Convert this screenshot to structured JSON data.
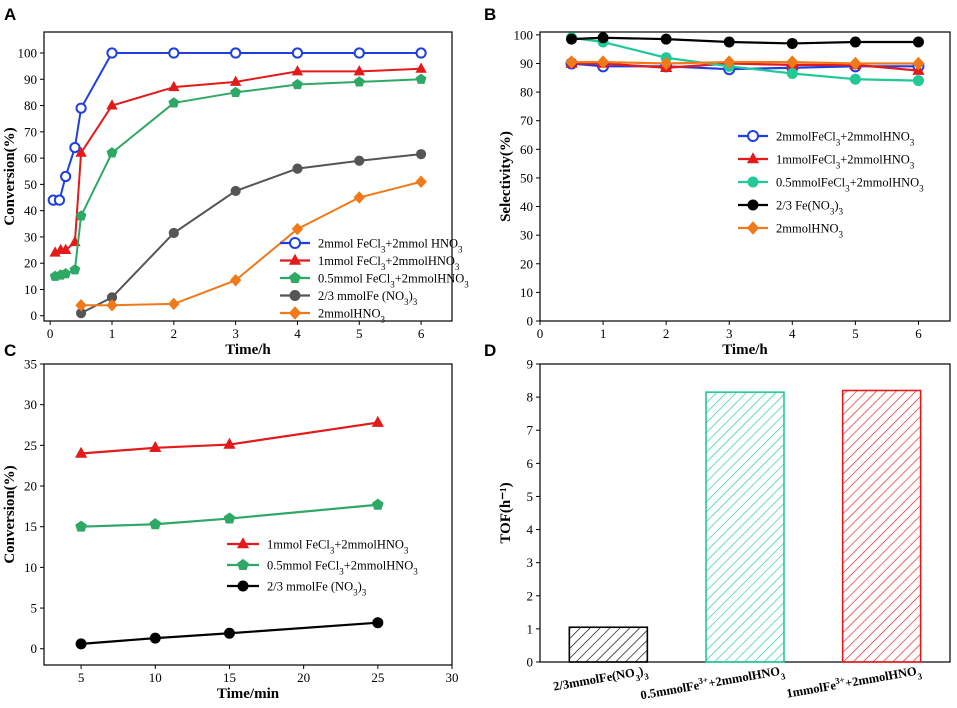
{
  "chart_data": [
    {
      "panel": "A",
      "type": "line",
      "xlabel": "Time/h",
      "ylabel": "Conversion(%)",
      "xlim": [
        -0.1,
        6.5
      ],
      "ylim": [
        -2,
        108
      ],
      "xticks": [
        "0",
        "1",
        "2",
        "3",
        "4",
        "5",
        "6"
      ],
      "yticks": [
        "0",
        "10",
        "20",
        "30",
        "40",
        "50",
        "60",
        "70",
        "80",
        "90",
        "100"
      ],
      "legend_position": "bottom-right",
      "series": [
        {
          "name": "2mmol FeCl3+2mmol HNO3",
          "legend_html": "2mmol FeCl<tspan baseline-shift='sub' font-size='9'>3</tspan>+2mmol HNO<tspan baseline-shift='sub' font-size='9'>3</tspan>",
          "color": "#1f3fe0",
          "marker": "circle",
          "x": [
            0.05,
            0.15,
            0.25,
            0.4,
            0.5,
            1,
            2,
            3,
            4,
            5,
            6
          ],
          "y": [
            44,
            44,
            53,
            64,
            79,
            100,
            100,
            100,
            100,
            100,
            100
          ]
        },
        {
          "name": "1mmol FeCl3+2mmolHNO3",
          "legend_html": "1mmol FeCl<tspan baseline-shift='sub' font-size='9'>3</tspan>+2mmolHNO<tspan baseline-shift='sub' font-size='9'>3</tspan>",
          "color": "#e41a1a",
          "marker": "triangle",
          "x": [
            0.08,
            0.17,
            0.25,
            0.4,
            0.5,
            1,
            2,
            3,
            4,
            5,
            6
          ],
          "y": [
            24,
            25,
            25,
            28,
            62,
            80,
            87,
            89,
            93,
            93,
            94
          ]
        },
        {
          "name": "0.5mmol FeCl3+2mmolHNO3",
          "legend_html": "0.5mmol FeCl<tspan baseline-shift='sub' font-size='9'>3</tspan>+2mmolHNO<tspan baseline-shift='sub' font-size='9'>3</tspan>",
          "color": "#2ea865",
          "marker": "pentagon",
          "x": [
            0.08,
            0.17,
            0.25,
            0.4,
            0.5,
            1,
            2,
            3,
            4,
            5,
            6
          ],
          "y": [
            15,
            15.5,
            16,
            17.5,
            38,
            62,
            81,
            85,
            88,
            89,
            90
          ]
        },
        {
          "name": "2/3 mmolFe (NO3)3",
          "legend_html": "2/3 mmolFe (NO<tspan baseline-shift='sub' font-size='9'>3</tspan>)<tspan baseline-shift='sub' font-size='9'>3</tspan>",
          "color": "#555555",
          "marker": "circle",
          "x": [
            0.5,
            1,
            2,
            3,
            4,
            5,
            6
          ],
          "y": [
            1,
            7,
            31.5,
            47.5,
            56,
            59,
            61.5
          ]
        },
        {
          "name": "2mmolHNO3",
          "legend_html": "2mmolHNO<tspan baseline-shift='sub' font-size='9'>3</tspan>",
          "color": "#f07a1a",
          "marker": "diamond",
          "x": [
            0.5,
            1,
            2,
            3,
            4,
            5,
            6
          ],
          "y": [
            4,
            4,
            4.5,
            13.5,
            33,
            45,
            51
          ]
        }
      ]
    },
    {
      "panel": "B",
      "type": "line",
      "xlabel": "Time/h",
      "ylabel": "Selectivity(%)",
      "xlim": [
        0,
        6.5
      ],
      "ylim": [
        0,
        101
      ],
      "xticks": [
        "0",
        "1",
        "2",
        "3",
        "4",
        "5",
        "6"
      ],
      "yticks": [
        "0",
        "10",
        "20",
        "30",
        "40",
        "50",
        "60",
        "70",
        "80",
        "90",
        "100"
      ],
      "legend_position": "center-right",
      "series": [
        {
          "name": "2mmolFeCl3+2mmolHNO3",
          "legend_html": "2mmolFeCl<tspan baseline-shift='sub' font-size='9'>3</tspan>+2mmolHNO<tspan baseline-shift='sub' font-size='9'>3</tspan>",
          "color": "#1f3fe0",
          "marker": "circle",
          "x": [
            0.5,
            1,
            2,
            3,
            4,
            5,
            6
          ],
          "y": [
            90,
            89,
            89,
            88,
            88.5,
            89,
            89
          ]
        },
        {
          "name": "1mmolFeCl3+2mmolHNO3",
          "legend_html": "1mmolFeCl<tspan baseline-shift='sub' font-size='9'>3</tspan>+2mmolHNO<tspan baseline-shift='sub' font-size='9'>3</tspan>",
          "color": "#e41a1a",
          "marker": "triangle",
          "x": [
            0.5,
            1,
            2,
            3,
            4,
            5,
            6
          ],
          "y": [
            90,
            90,
            88.5,
            90,
            89.5,
            89.5,
            87.5
          ]
        },
        {
          "name": "0.5mmolFeCl3+2mmolHNO3",
          "legend_html": "0.5mmolFeCl<tspan baseline-shift='sub' font-size='9'>3</tspan>+2mmolHNO<tspan baseline-shift='sub' font-size='9'>3</tspan>",
          "color": "#20c997",
          "marker": "circle",
          "x": [
            0.5,
            1,
            2,
            3,
            4,
            5,
            6
          ],
          "y": [
            99,
            97.5,
            92,
            89,
            86.5,
            84.5,
            84
          ]
        },
        {
          "name": "2/3 Fe(NO3)3",
          "legend_html": "2/3 Fe(NO<tspan baseline-shift='sub' font-size='9'>3</tspan>)<tspan baseline-shift='sub' font-size='9'>3</tspan>",
          "color": "#000000",
          "marker": "circle",
          "x": [
            0.5,
            1,
            2,
            3,
            4,
            5,
            6
          ],
          "y": [
            98.5,
            99,
            98.5,
            97.5,
            97,
            97.5,
            97.5
          ]
        },
        {
          "name": "2mmolHNO3",
          "legend_html": "2mmolHNO<tspan baseline-shift='sub' font-size='9'>3</tspan>",
          "color": "#f07a1a",
          "marker": "diamond",
          "x": [
            0.5,
            1,
            2,
            3,
            4,
            5,
            6
          ],
          "y": [
            90.5,
            90.5,
            90,
            90.5,
            90.5,
            90,
            90
          ]
        }
      ]
    },
    {
      "panel": "C",
      "type": "line",
      "xlabel": "Time/min",
      "ylabel": "Conversion(%)",
      "xlim": [
        2.5,
        30
      ],
      "ylim": [
        -2,
        35
      ],
      "xticks": [
        "5",
        "10",
        "15",
        "20",
        "25",
        "30"
      ],
      "yticks": [
        "0",
        "5",
        "10",
        "15",
        "20",
        "25",
        "30",
        "35"
      ],
      "legend_position": "bottom-center",
      "series": [
        {
          "name": "1mmol FeCl3+2mmolHNO3",
          "legend_html": "1mmol FeCl<tspan baseline-shift='sub' font-size='9'>3</tspan>+2mmolHNO<tspan baseline-shift='sub' font-size='9'>3</tspan>",
          "color": "#e41a1a",
          "marker": "triangle",
          "x": [
            5,
            10,
            15,
            25
          ],
          "y": [
            24,
            24.7,
            25.1,
            27.8
          ]
        },
        {
          "name": "0.5mmol FeCl3+2mmolHNO3",
          "legend_html": "0.5mmol FeCl<tspan baseline-shift='sub' font-size='9'>3</tspan>+2mmolHNO<tspan baseline-shift='sub' font-size='9'>3</tspan>",
          "color": "#2ea865",
          "marker": "pentagon",
          "x": [
            5,
            10,
            15,
            25
          ],
          "y": [
            15,
            15.3,
            16,
            17.7
          ]
        },
        {
          "name": "2/3 mmolFe (NO3)3",
          "legend_html": "2/3 mmolFe (NO<tspan baseline-shift='sub' font-size='9'>3</tspan>)<tspan baseline-shift='sub' font-size='9'>3</tspan>",
          "color": "#000000",
          "marker": "circle",
          "x": [
            5,
            10,
            15,
            25
          ],
          "y": [
            0.6,
            1.3,
            1.9,
            3.2
          ]
        }
      ]
    },
    {
      "panel": "D",
      "type": "bar",
      "ylabel": "TOF(h⁻¹)",
      "ylim": [
        0,
        9
      ],
      "yticks": [
        "0",
        "1",
        "2",
        "3",
        "4",
        "5",
        "6",
        "7",
        "8",
        "9"
      ],
      "categories": [
        "2/3mmolFe(NO3)3",
        "0.5mmolFe3++2mmolHNO3",
        "1mmolFe3++2mmolHNO3"
      ],
      "category_html": [
        "2/3mmolFe(NO<tspan baseline-shift='sub' font-size='9'>3</tspan>)<tspan baseline-shift='sub' font-size='9'>3</tspan>",
        "0.5mmolFe<tspan baseline-shift='super' font-size='9'>3+</tspan>+2mmolHNO<tspan baseline-shift='sub' font-size='9'>3</tspan>",
        "1mmolFe<tspan baseline-shift='super' font-size='9'>3+</tspan>+2mmolHNO<tspan baseline-shift='sub' font-size='9'>3</tspan>"
      ],
      "values": [
        1.05,
        8.15,
        8.2
      ],
      "colors": [
        "#000000",
        "#20c997",
        "#e41a1a"
      ],
      "pattern": "diagonal-hatch"
    }
  ]
}
